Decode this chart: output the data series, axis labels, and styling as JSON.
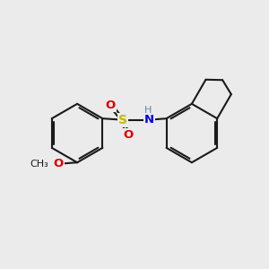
{
  "background_color": "#ebebeb",
  "bond_color": "#1a1a1a",
  "bond_width": 1.5,
  "dbo": 0.055,
  "S_color": "#c8b800",
  "O_color": "#dd0000",
  "N_color": "#0000ee",
  "H_color": "#5588aa",
  "fig_size": [
    3.0,
    3.0
  ],
  "dpi": 100,
  "xlim": [
    0,
    10
  ],
  "ylim": [
    0,
    10
  ]
}
